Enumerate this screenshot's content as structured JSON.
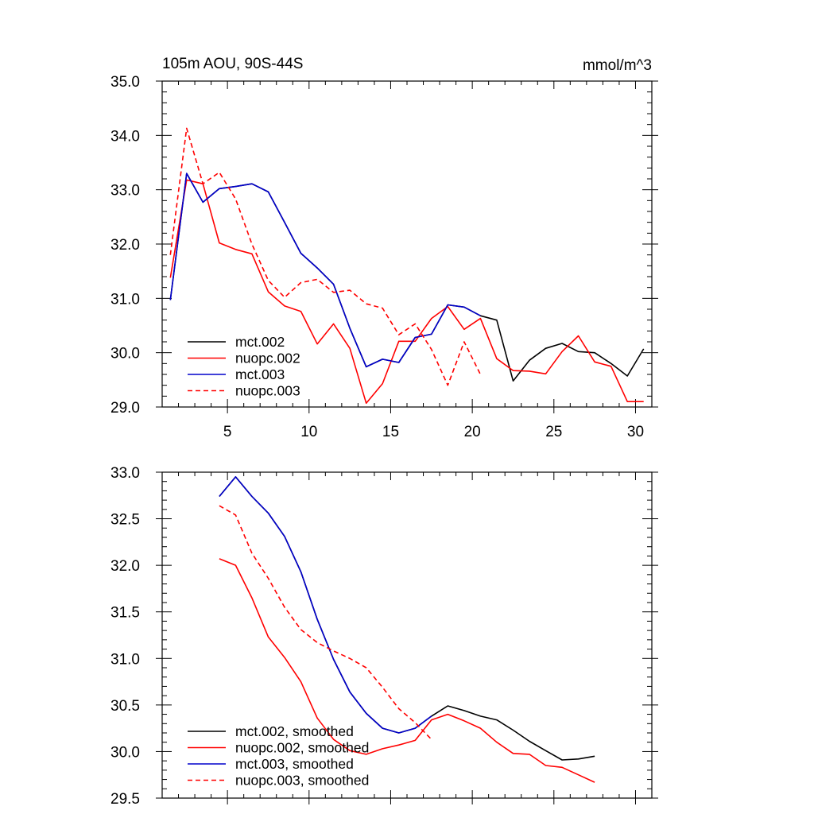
{
  "chart_data": [
    {
      "type": "line",
      "title_left": "105m AOU, 90S-44S",
      "title_right": "mmol/m^3",
      "xlim": [
        1,
        31
      ],
      "ylim": [
        29.0,
        35.0
      ],
      "xticks": [
        5,
        10,
        15,
        20,
        25,
        30
      ],
      "yticks": [
        29.0,
        30.0,
        31.0,
        32.0,
        33.0,
        34.0,
        35.0
      ],
      "x_tick_labels_shown": true,
      "series": [
        {
          "name": "mct.002",
          "color": "#000000",
          "dash": "solid",
          "x": [
            1.5,
            2.5,
            3.5,
            4.5,
            5.5,
            6.5,
            7.5,
            8.5,
            9.5,
            10.5,
            11.5,
            12.5,
            13.5,
            14.5,
            15.5,
            16.5,
            17.5,
            18.5,
            19.5,
            20.5,
            21.5,
            22.5,
            23.5,
            24.5,
            25.5,
            26.5,
            27.5,
            28.5,
            29.5,
            30.5
          ],
          "y": [
            30.97,
            33.3,
            32.77,
            33.02,
            33.06,
            33.11,
            32.96,
            32.4,
            31.83,
            31.56,
            31.26,
            30.45,
            29.74,
            29.88,
            29.82,
            30.28,
            30.34,
            30.88,
            30.84,
            30.68,
            30.6,
            29.48,
            29.86,
            30.08,
            30.17,
            30.02,
            30.0,
            29.8,
            29.57,
            30.07
          ]
        },
        {
          "name": "nuopc.002",
          "color": "#ff0000",
          "dash": "solid",
          "x": [
            1.5,
            2.5,
            3.5,
            4.5,
            5.5,
            6.5,
            7.5,
            8.5,
            9.5,
            10.5,
            11.5,
            12.5,
            13.5,
            14.5,
            15.5,
            16.5,
            17.5,
            18.5,
            19.5,
            20.5,
            21.5,
            22.5,
            23.5,
            24.5,
            25.5,
            26.5,
            27.5,
            28.5,
            29.5,
            30.5
          ],
          "y": [
            31.38,
            33.18,
            33.11,
            32.02,
            31.9,
            31.82,
            31.12,
            30.86,
            30.76,
            30.16,
            30.53,
            30.08,
            29.07,
            29.43,
            30.21,
            30.21,
            30.63,
            30.85,
            30.43,
            30.63,
            29.89,
            29.67,
            29.66,
            29.61,
            30.02,
            30.31,
            29.83,
            29.75,
            29.1,
            29.1
          ]
        },
        {
          "name": "mct.003",
          "color": "#0000cc",
          "dash": "solid",
          "x": [
            1.5,
            2.5,
            3.5,
            4.5,
            5.5,
            6.5,
            7.5,
            8.5,
            9.5,
            10.5,
            11.5,
            12.5,
            13.5,
            14.5,
            15.5,
            16.5,
            17.5,
            18.5,
            19.5,
            20.5
          ],
          "y": [
            30.97,
            33.3,
            32.77,
            33.02,
            33.06,
            33.11,
            32.96,
            32.4,
            31.83,
            31.56,
            31.26,
            30.45,
            29.74,
            29.88,
            29.82,
            30.28,
            30.34,
            30.88,
            30.84,
            30.68
          ]
        },
        {
          "name": "nuopc.003",
          "color": "#ff0000",
          "dash": "dashed",
          "x": [
            1.5,
            2.5,
            3.5,
            4.5,
            5.5,
            6.5,
            7.5,
            8.5,
            9.5,
            10.5,
            11.5,
            12.5,
            13.5,
            14.5,
            15.5,
            16.5,
            17.5,
            18.5,
            19.5,
            20.5
          ],
          "y": [
            31.8,
            34.13,
            33.11,
            33.32,
            32.83,
            32.0,
            31.33,
            31.02,
            31.29,
            31.35,
            31.11,
            31.15,
            30.9,
            30.82,
            30.33,
            30.53,
            30.06,
            29.4,
            30.2,
            29.6
          ]
        }
      ],
      "legend": [
        "mct.002",
        "nuopc.002",
        "mct.003",
        "nuopc.003"
      ],
      "legend_position": "bottom-left"
    },
    {
      "type": "line",
      "xlim": [
        1,
        31
      ],
      "ylim": [
        29.5,
        33.0
      ],
      "xticks": [
        5,
        10,
        15,
        20,
        25,
        30
      ],
      "yticks": [
        29.5,
        30.0,
        30.5,
        31.0,
        31.5,
        32.0,
        32.5,
        33.0
      ],
      "x_tick_labels_shown": false,
      "series": [
        {
          "name": "mct.002, smoothed",
          "color": "#000000",
          "dash": "solid",
          "x": [
            4.5,
            5.5,
            6.5,
            7.5,
            8.5,
            9.5,
            10.5,
            11.5,
            12.5,
            13.5,
            14.5,
            15.5,
            16.5,
            17.5,
            18.5,
            19.5,
            20.5,
            21.5,
            22.5,
            23.5,
            24.5,
            25.5,
            26.5,
            27.5
          ],
          "y": [
            32.74,
            32.95,
            32.74,
            32.56,
            32.31,
            31.93,
            31.42,
            30.99,
            30.64,
            30.41,
            30.25,
            30.2,
            30.25,
            30.38,
            30.49,
            30.44,
            30.38,
            30.34,
            30.23,
            30.11,
            30.01,
            29.91,
            29.92,
            29.95
          ]
        },
        {
          "name": "nuopc.002, smoothed",
          "color": "#ff0000",
          "dash": "solid",
          "x": [
            4.5,
            5.5,
            6.5,
            7.5,
            8.5,
            9.5,
            10.5,
            11.5,
            12.5,
            13.5,
            14.5,
            15.5,
            16.5,
            17.5,
            18.5,
            19.5,
            20.5,
            21.5,
            22.5,
            23.5,
            24.5,
            25.5,
            26.5,
            27.5
          ],
          "y": [
            32.07,
            32.0,
            31.65,
            31.23,
            31.01,
            30.75,
            30.36,
            30.13,
            30.01,
            29.97,
            30.03,
            30.07,
            30.12,
            30.34,
            30.4,
            30.33,
            30.25,
            30.1,
            29.98,
            29.97,
            29.85,
            29.83,
            29.75,
            29.67
          ]
        },
        {
          "name": "mct.003, smoothed",
          "color": "#0000cc",
          "dash": "solid",
          "x": [
            4.5,
            5.5,
            6.5,
            7.5,
            8.5,
            9.5,
            10.5,
            11.5,
            12.5,
            13.5,
            14.5,
            15.5,
            16.5,
            17.5
          ],
          "y": [
            32.74,
            32.95,
            32.74,
            32.56,
            32.31,
            31.93,
            31.42,
            30.99,
            30.64,
            30.41,
            30.25,
            30.2,
            30.25,
            30.38
          ]
        },
        {
          "name": "nuopc.003, smoothed",
          "color": "#ff0000",
          "dash": "dashed",
          "x": [
            4.5,
            5.5,
            6.5,
            7.5,
            8.5,
            9.5,
            10.5,
            11.5,
            12.5,
            13.5,
            14.5,
            15.5,
            16.5,
            17.5
          ],
          "y": [
            32.64,
            32.54,
            32.13,
            31.86,
            31.55,
            31.31,
            31.17,
            31.08,
            31.0,
            30.9,
            30.69,
            30.46,
            30.31,
            30.13
          ]
        }
      ],
      "legend": [
        "mct.002, smoothed",
        "nuopc.002, smoothed",
        "mct.003, smoothed",
        "nuopc.003, smoothed"
      ],
      "legend_position": "bottom-left"
    }
  ]
}
